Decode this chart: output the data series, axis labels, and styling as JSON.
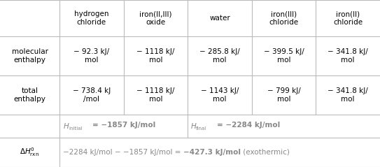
{
  "col_headers": [
    "hydrogen\nchloride",
    "iron(II,III)\noxide",
    "water",
    "iron(III)\nchloride",
    "iron(II)\nchloride"
  ],
  "mol_enthalpy": [
    "− 92.3 kJ/\nmol",
    "− 1118 kJ/\nmol",
    "− 285.8 kJ/\nmol",
    "− 399.5 kJ/\nmol",
    "− 341.8 kJ/\nmol"
  ],
  "total_enthalpy": [
    "− 738.4 kJ\n/mol",
    "− 1118 kJ/\nmol",
    "− 1143 kJ/\nmol",
    "− 799 kJ/\nmol",
    "− 341.8 kJ/\nmol"
  ],
  "background": "#ffffff",
  "border_color": "#bbbbbb",
  "text_color": "#000000",
  "gray_text": "#888888",
  "figsize": [
    5.43,
    2.39
  ],
  "dpi": 100
}
